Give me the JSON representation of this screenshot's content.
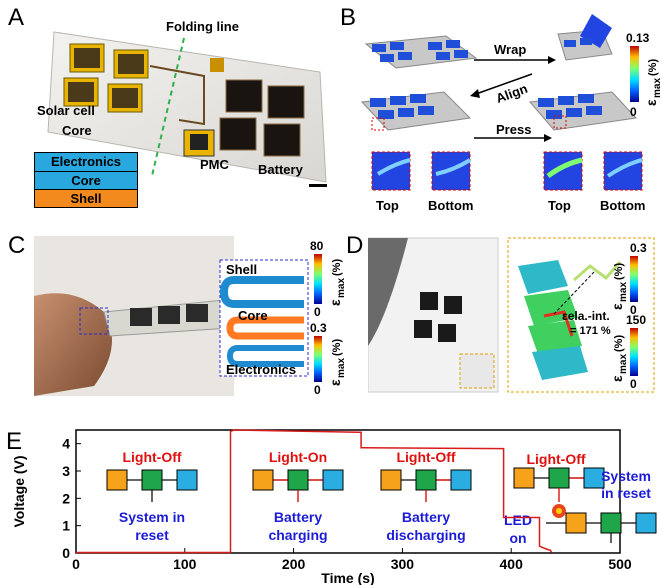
{
  "panels": {
    "A": {
      "label": "A",
      "folding_line": "Folding line",
      "solar_cell": "Solar cell",
      "core": "Core",
      "pmc": "PMC",
      "battery": "Battery",
      "stack": [
        "Electronics",
        "Core",
        "Shell"
      ],
      "colors": {
        "electronics": "#f2a81d",
        "core": "#29a8e0",
        "shell": "#f28a1e"
      }
    },
    "B": {
      "label": "B",
      "steps": [
        "Wrap",
        "Align",
        "Press"
      ],
      "colorbar": {
        "max": "0.13",
        "min": "0",
        "symbol": "ε",
        "sub": "max",
        "unit": "(%)"
      },
      "views": [
        "Top",
        "Bottom",
        "Top",
        "Bottom"
      ]
    },
    "C": {
      "label": "C",
      "layers": [
        "Shell",
        "Core",
        "Electronics"
      ],
      "colorbar_top": {
        "max": "80",
        "min": "0",
        "symbol": "ε",
        "sub": "max",
        "unit": "(%)"
      },
      "colorbar_bottom": {
        "max": "0.3",
        "min": "0",
        "symbol": "ε",
        "sub": "max",
        "unit": "(%)"
      }
    },
    "D": {
      "label": "D",
      "annotation": "εela.-int.",
      "annotation_value": "= 171 %",
      "colorbar_top": {
        "max": "0.3",
        "min": "0",
        "symbol": "ε",
        "sub": "max",
        "unit": "(%)"
      },
      "colorbar_bottom": {
        "max": "150",
        "min": "0",
        "symbol": "ε",
        "sub": "max",
        "unit": "(%)"
      }
    },
    "E": {
      "label": "E",
      "phases": [
        {
          "title": "Light-Off",
          "caption": [
            "System in",
            "reset"
          ]
        },
        {
          "title": "Light-On",
          "caption": [
            "Battery",
            "charging"
          ]
        },
        {
          "title": "Light-Off",
          "caption": [
            "Battery",
            "discharging"
          ]
        },
        {
          "title": "Light-Off",
          "caption": [
            "LED",
            "on"
          ]
        },
        {
          "title": "",
          "caption": [
            "System",
            "in reset"
          ]
        }
      ],
      "block_colors": {
        "solar": "#f7a21b",
        "pmc": "#1fa64a",
        "battery": "#2aaee2",
        "arrow": "#e02020",
        "led": "#e8461e"
      }
    }
  },
  "chart_data": {
    "type": "line",
    "xlabel": "Time (s)",
    "ylabel": "Voltage (V)",
    "xlim": [
      0,
      500
    ],
    "ylim": [
      0,
      4.5
    ],
    "xticks": [
      0,
      100,
      200,
      300,
      400,
      500
    ],
    "yticks": [
      0,
      1,
      2,
      3,
      4
    ],
    "line_color": "#d81b1b",
    "x": [
      0,
      142,
      142,
      145,
      260,
      262,
      262,
      265,
      392,
      393,
      393,
      395,
      426,
      426,
      432,
      436,
      437
    ],
    "y": [
      0.02,
      0.02,
      4.45,
      4.5,
      4.42,
      4.42,
      3.85,
      3.85,
      3.82,
      3.82,
      1.3,
      1.3,
      1.3,
      0.25,
      0.15,
      0.1,
      0.02
    ]
  }
}
